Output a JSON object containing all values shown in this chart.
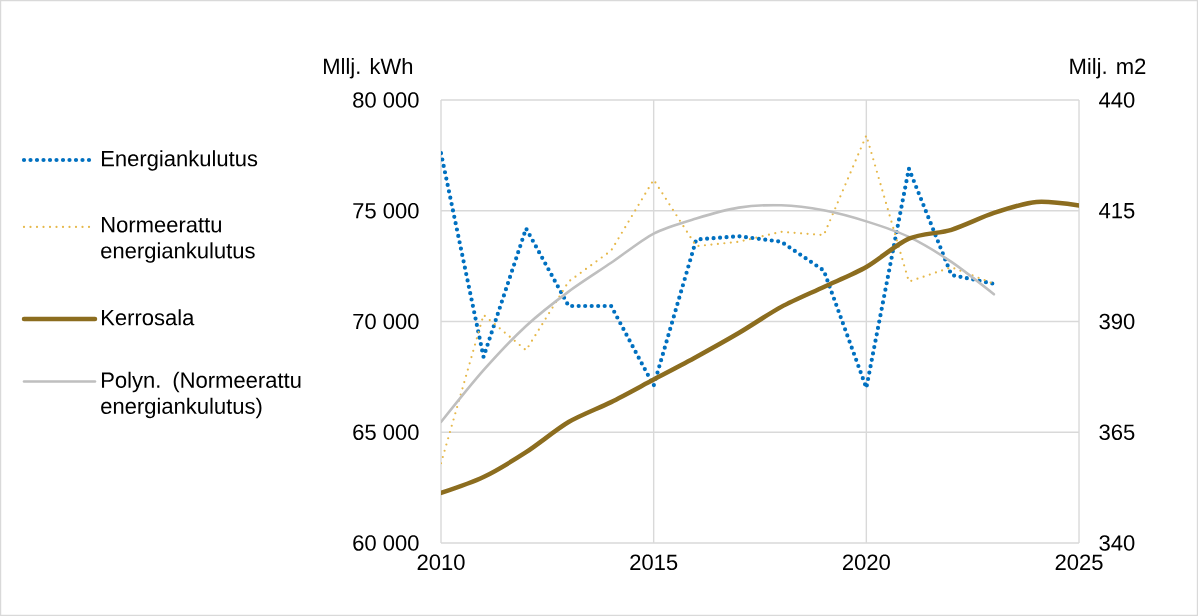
{
  "chart_data": {
    "type": "line",
    "ylabel": "Mllj. kWh",
    "y2label": "Milj. m2",
    "xlim": [
      2010,
      2025
    ],
    "xticks": [
      2010,
      2015,
      2020,
      2025
    ],
    "ylim": [
      60000,
      80000
    ],
    "yticks": [
      {
        "value": 60000,
        "label": "60 000"
      },
      {
        "value": 65000,
        "label": "65 000"
      },
      {
        "value": 70000,
        "label": "70 000"
      },
      {
        "value": 75000,
        "label": "75 000"
      },
      {
        "value": 80000,
        "label": "80 000"
      }
    ],
    "y2lim": [
      340,
      440
    ],
    "y2ticks": [
      340,
      365,
      390,
      415,
      440
    ],
    "grid": true,
    "legend": "left",
    "series": [
      {
        "name": "Energiankulutus",
        "color": "#0070c0",
        "line_style": "dotted",
        "x": [
          2010,
          2011,
          2012,
          2013,
          2014,
          2015,
          2016,
          2017,
          2018,
          2019,
          2020,
          2021,
          2022,
          2023
        ],
        "values": [
          77600,
          68400,
          74200,
          70700,
          70700,
          67100,
          73700,
          73850,
          73600,
          72300,
          67000,
          76900,
          72100,
          71700
        ]
      },
      {
        "name": "Normeerattu energiankulutus",
        "color": "#e6b84a",
        "line_style": "dotted",
        "x": [
          2010,
          2011,
          2012,
          2013,
          2014,
          2015,
          2016,
          2017,
          2018,
          2019,
          2020,
          2021,
          2022,
          2023
        ],
        "values": [
          63600,
          70300,
          68700,
          71800,
          73200,
          76400,
          73400,
          73600,
          74050,
          73900,
          78400,
          71800,
          72450,
          71700
        ]
      },
      {
        "name": "Kerrosala",
        "color": "#8c6d1f",
        "line_style": "solid",
        "axis": "y2",
        "x": [
          2010,
          2011,
          2012,
          2013,
          2014,
          2015,
          2016,
          2017,
          2018,
          2019,
          2020,
          2021,
          2022,
          2023,
          2024,
          2025
        ],
        "values": [
          351.3,
          354.9,
          360.5,
          367.3,
          371.8,
          376.9,
          382.0,
          387.4,
          393.3,
          397.8,
          402.3,
          408.7,
          410.7,
          414.5,
          417.0,
          416.2
        ]
      },
      {
        "name": "Polyn. (Normeerattu energiankulutus)",
        "color": "#bfbfbf",
        "line_style": "solid",
        "x": [
          2010,
          2011,
          2012,
          2013,
          2014,
          2015,
          2016,
          2017,
          2018,
          2019,
          2020,
          2021,
          2022,
          2023
        ],
        "values": [
          65460,
          67800,
          69800,
          71350,
          72650,
          73970,
          74650,
          75140,
          75250,
          75020,
          74520,
          73820,
          72690,
          71230
        ]
      }
    ]
  }
}
